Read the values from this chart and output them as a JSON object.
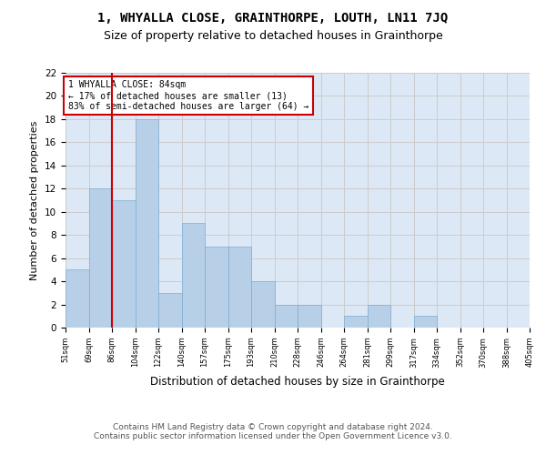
{
  "title": "1, WHYALLA CLOSE, GRAINTHORPE, LOUTH, LN11 7JQ",
  "subtitle": "Size of property relative to detached houses in Grainthorpe",
  "xlabel": "Distribution of detached houses by size in Grainthorpe",
  "ylabel": "Number of detached properties",
  "bar_values": [
    5,
    12,
    11,
    18,
    3,
    9,
    7,
    7,
    4,
    2,
    2,
    0,
    1,
    2,
    0,
    1,
    0,
    0,
    0,
    0
  ],
  "x_labels": [
    "51sqm",
    "69sqm",
    "86sqm",
    "104sqm",
    "122sqm",
    "140sqm",
    "157sqm",
    "175sqm",
    "193sqm",
    "210sqm",
    "228sqm",
    "246sqm",
    "264sqm",
    "281sqm",
    "299sqm",
    "317sqm",
    "334sqm",
    "352sqm",
    "370sqm",
    "388sqm",
    "405sqm"
  ],
  "bar_color": "#b8cfe8",
  "bar_edge_color": "#7aaed6",
  "vline_color": "#cc0000",
  "annotation_text": "1 WHYALLA CLOSE: 84sqm\n← 17% of detached houses are smaller (13)\n83% of semi-detached houses are larger (64) →",
  "annotation_box_color": "#cc0000",
  "ylim": [
    0,
    22
  ],
  "yticks": [
    0,
    2,
    4,
    6,
    8,
    10,
    12,
    14,
    16,
    18,
    20,
    22
  ],
  "grid_color": "#cccccc",
  "background_color": "#dce8f5",
  "footer_text": "Contains HM Land Registry data © Crown copyright and database right 2024.\nContains public sector information licensed under the Open Government Licence v3.0.",
  "title_fontsize": 10,
  "subtitle_fontsize": 9,
  "xlabel_fontsize": 8.5,
  "ylabel_fontsize": 8,
  "footer_fontsize": 6.5
}
